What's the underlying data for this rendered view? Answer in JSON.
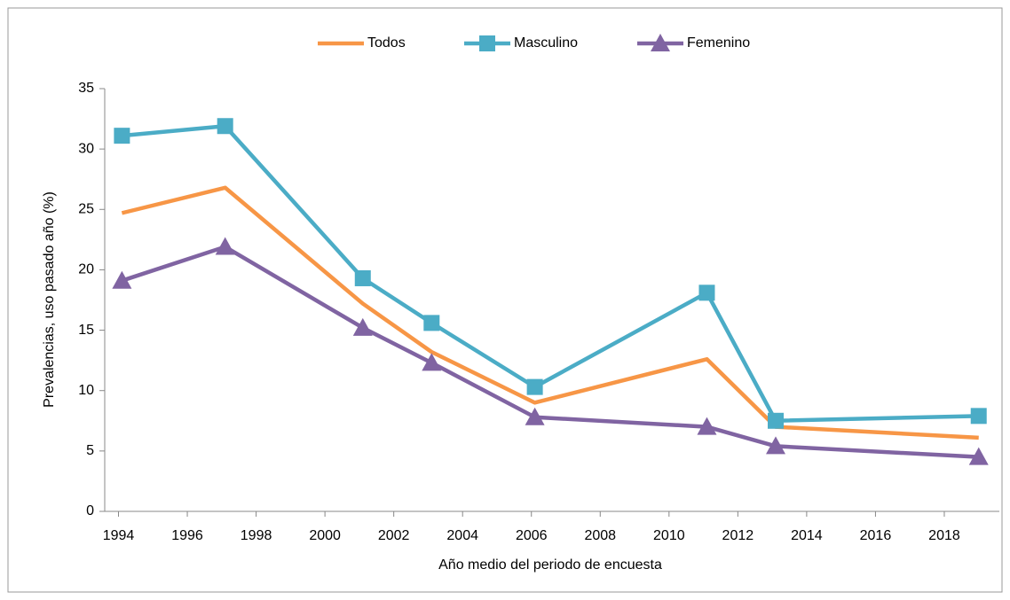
{
  "chart_data": {
    "type": "line",
    "x_label": "Año medio del periodo de encuesta",
    "y_label": "Prevalencias, uso pasado año (%)",
    "x": [
      1994.1,
      1997.1,
      2001.1,
      2003.1,
      2006.1,
      2011.1,
      2013.1,
      2019.0
    ],
    "series": [
      {
        "name": "Todos",
        "color": "#f79646",
        "marker": "none",
        "values": [
          24.7,
          26.8,
          17.2,
          13.2,
          9.0,
          12.6,
          7.0,
          6.1
        ]
      },
      {
        "name": "Masculino",
        "color": "#4bacc6",
        "marker": "square",
        "values": [
          31.1,
          31.9,
          19.3,
          15.6,
          10.3,
          18.1,
          7.5,
          7.9
        ]
      },
      {
        "name": "Femenino",
        "color": "#8064a2",
        "marker": "triangle",
        "values": [
          19.1,
          21.9,
          15.2,
          12.3,
          7.8,
          7.0,
          5.4,
          4.5
        ]
      }
    ],
    "xlim": [
      1993.6,
      2019.6
    ],
    "xticks": [
      1994,
      1996,
      1998,
      2000,
      2002,
      2004,
      2006,
      2008,
      2010,
      2012,
      2014,
      2016,
      2018
    ],
    "ylim": [
      0,
      35
    ],
    "yticks": [
      0,
      5,
      10,
      15,
      20,
      25,
      30,
      35
    ],
    "legend": "top"
  }
}
